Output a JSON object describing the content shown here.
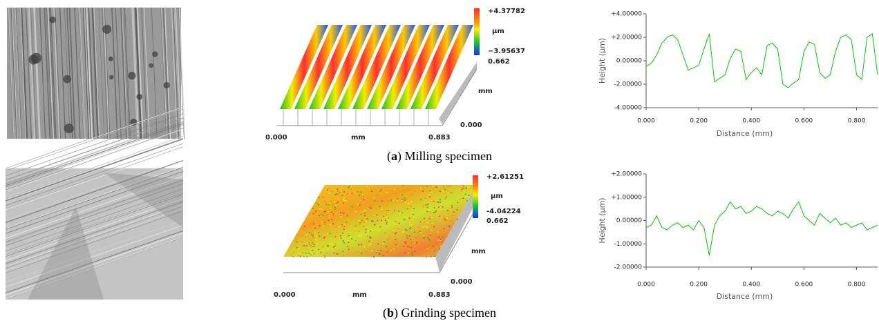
{
  "panels": [
    {
      "caption": [
        "(",
        "a",
        ") Milling specimen"
      ],
      "surface": {
        "colorbar_max": "+4.37782",
        "colorbar_unit": "μm",
        "colorbar_min": "−3.95637",
        "depth_max": "0.662",
        "depth_unit": "mm",
        "depth_min": "0.000",
        "x_min": "0.000",
        "x_unit": "mm",
        "x_max": "0.883"
      }
    },
    {
      "caption": [
        "(",
        "b",
        ") Grinding specimen"
      ],
      "surface": {
        "colorbar_max": "+2.61251",
        "colorbar_unit": "μm",
        "colorbar_min": "-4.04224",
        "depth_max": "0.662",
        "depth_unit": "mm",
        "depth_min": "0.000",
        "x_min": "0.000",
        "x_unit": "mm",
        "x_max": "0.883"
      }
    }
  ],
  "chart_data": [
    {
      "type": "line",
      "xlabel": "Distance (mm)",
      "ylabel": "Height (μm)",
      "color": "#00cc00",
      "xlim": [
        0,
        0.88
      ],
      "ylim": [
        -4,
        4
      ],
      "xticks": [
        {
          "value": 0,
          "label": "0.000"
        },
        {
          "value": 0.2,
          "label": "0.200"
        },
        {
          "value": 0.4,
          "label": "0.400"
        },
        {
          "value": 0.6,
          "label": "0.600"
        },
        {
          "value": 0.8,
          "label": "0.800"
        }
      ],
      "yticks": [
        {
          "value": 4,
          "label": "+4.00000"
        },
        {
          "value": 2,
          "label": "+2.00000"
        },
        {
          "value": 0,
          "label": "0.00000"
        },
        {
          "value": -2,
          "label": "-2.00000"
        },
        {
          "value": -4,
          "label": "-4.00000"
        }
      ],
      "x": [
        0,
        0.02,
        0.04,
        0.06,
        0.08,
        0.1,
        0.12,
        0.14,
        0.16,
        0.18,
        0.2,
        0.22,
        0.24,
        0.26,
        0.28,
        0.3,
        0.32,
        0.34,
        0.36,
        0.38,
        0.4,
        0.42,
        0.44,
        0.46,
        0.48,
        0.5,
        0.52,
        0.54,
        0.56,
        0.58,
        0.6,
        0.62,
        0.64,
        0.66,
        0.68,
        0.7,
        0.72,
        0.74,
        0.76,
        0.78,
        0.8,
        0.82,
        0.84,
        0.86,
        0.88
      ],
      "values": [
        -0.5,
        -0.2,
        0.5,
        1.5,
        2.0,
        2.2,
        1.8,
        0.5,
        -0.8,
        -0.6,
        -0.4,
        1.0,
        2.3,
        -1.8,
        -1.5,
        -1.2,
        0.2,
        1.0,
        0.8,
        -1.6,
        -1.0,
        -0.6,
        -1.2,
        1.3,
        1.5,
        1.0,
        -2.0,
        -2.3,
        -1.9,
        -1.6,
        0.8,
        1.6,
        1.4,
        -1.0,
        -1.5,
        -1.2,
        0.8,
        2.0,
        2.2,
        1.8,
        -1.2,
        -1.6,
        2.0,
        2.3,
        -1.2
      ]
    },
    {
      "type": "line",
      "xlabel": "Distance (mm)",
      "ylabel": "Height (μm)",
      "color": "#00cc00",
      "xlim": [
        0,
        0.88
      ],
      "ylim": [
        -2,
        2
      ],
      "xticks": [
        {
          "value": 0,
          "label": "0.000"
        },
        {
          "value": 0.2,
          "label": "0.200"
        },
        {
          "value": 0.4,
          "label": "0.400"
        },
        {
          "value": 0.6,
          "label": "0.600"
        },
        {
          "value": 0.8,
          "label": "0.800"
        }
      ],
      "yticks": [
        {
          "value": 2,
          "label": "+2.00000"
        },
        {
          "value": 1,
          "label": "+1.00000"
        },
        {
          "value": 0,
          "label": "0.00000"
        },
        {
          "value": -1,
          "label": "-1.00000"
        },
        {
          "value": -2,
          "label": "-2.00000"
        }
      ],
      "x": [
        0,
        0.02,
        0.04,
        0.06,
        0.08,
        0.1,
        0.12,
        0.14,
        0.16,
        0.18,
        0.2,
        0.22,
        0.24,
        0.26,
        0.28,
        0.3,
        0.32,
        0.34,
        0.36,
        0.38,
        0.4,
        0.42,
        0.44,
        0.46,
        0.48,
        0.5,
        0.52,
        0.54,
        0.56,
        0.58,
        0.6,
        0.62,
        0.64,
        0.66,
        0.68,
        0.7,
        0.72,
        0.74,
        0.76,
        0.78,
        0.8,
        0.82,
        0.84,
        0.86,
        0.88
      ],
      "values": [
        -0.3,
        -0.2,
        0.2,
        -0.3,
        -0.4,
        -0.2,
        -0.1,
        -0.3,
        -0.2,
        -0.4,
        0.0,
        -0.3,
        -1.5,
        -0.2,
        0.2,
        0.4,
        0.8,
        0.5,
        0.6,
        0.3,
        0.4,
        0.6,
        0.5,
        0.3,
        0.2,
        0.4,
        0.3,
        0.1,
        0.5,
        0.8,
        0.2,
        0.0,
        -0.2,
        0.3,
        0.1,
        -0.1,
        0.1,
        -0.2,
        -0.1,
        -0.3,
        -0.2,
        -0.1,
        -0.4,
        -0.3,
        -0.2
      ]
    }
  ]
}
